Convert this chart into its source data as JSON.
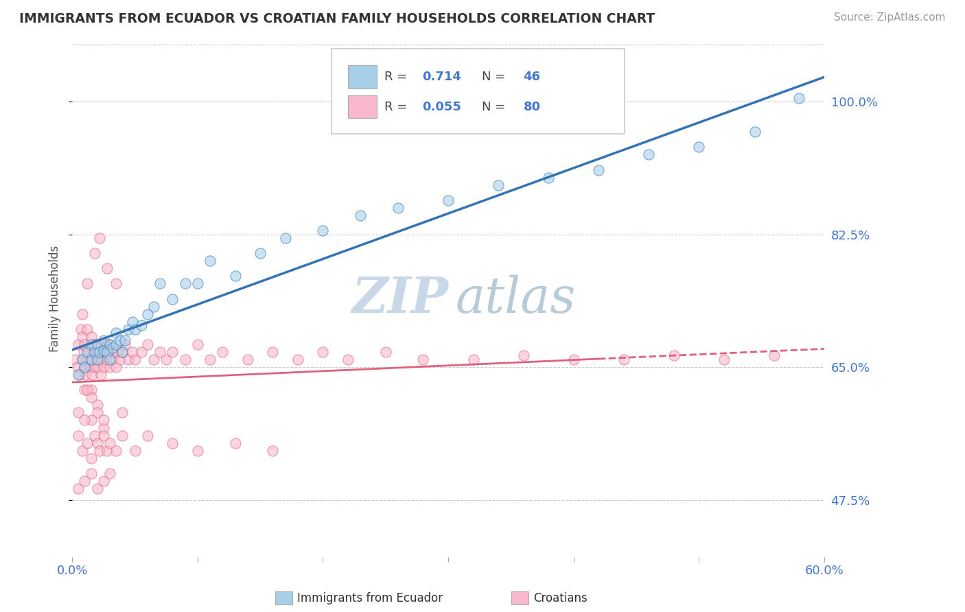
{
  "title": "IMMIGRANTS FROM ECUADOR VS CROATIAN FAMILY HOUSEHOLDS CORRELATION CHART",
  "source": "Source: ZipAtlas.com",
  "ylabel": "Family Households",
  "xlim": [
    0.0,
    0.6
  ],
  "ylim": [
    0.4,
    1.08
  ],
  "yticks": [
    0.475,
    0.65,
    0.825,
    1.0
  ],
  "ytick_labels": [
    "47.5%",
    "65.0%",
    "82.5%",
    "100.0%"
  ],
  "xticks": [
    0.0,
    0.1,
    0.2,
    0.3,
    0.4,
    0.5,
    0.6
  ],
  "xtick_labels": [
    "0.0%",
    "",
    "",
    "",
    "",
    "",
    "60.0%"
  ],
  "R_ecuador": 0.714,
  "N_ecuador": 46,
  "R_croatian": 0.055,
  "N_croatian": 80,
  "color_ecuador": "#a8cfe8",
  "color_croatian": "#f9b8cb",
  "trend_color_ecuador": "#3474b5",
  "trend_color_croatian": "#e06080",
  "background_color": "#ffffff",
  "grid_color": "#cccccc",
  "axis_color": "#4477cc",
  "title_color": "#333333",
  "watermark_color": "#c8d8e8",
  "ecuador_x": [
    0.005,
    0.008,
    0.01,
    0.012,
    0.015,
    0.015,
    0.018,
    0.02,
    0.02,
    0.022,
    0.025,
    0.025,
    0.028,
    0.03,
    0.03,
    0.032,
    0.035,
    0.035,
    0.038,
    0.04,
    0.042,
    0.045,
    0.048,
    0.05,
    0.055,
    0.06,
    0.065,
    0.07,
    0.08,
    0.09,
    0.1,
    0.11,
    0.13,
    0.15,
    0.17,
    0.2,
    0.23,
    0.26,
    0.3,
    0.34,
    0.38,
    0.42,
    0.46,
    0.5,
    0.545,
    0.58
  ],
  "ecuador_y": [
    0.64,
    0.66,
    0.65,
    0.67,
    0.66,
    0.68,
    0.67,
    0.66,
    0.68,
    0.67,
    0.672,
    0.685,
    0.67,
    0.66,
    0.68,
    0.675,
    0.68,
    0.695,
    0.685,
    0.67,
    0.685,
    0.7,
    0.71,
    0.7,
    0.705,
    0.72,
    0.73,
    0.76,
    0.74,
    0.76,
    0.76,
    0.79,
    0.77,
    0.8,
    0.82,
    0.83,
    0.85,
    0.86,
    0.87,
    0.89,
    0.9,
    0.91,
    0.93,
    0.94,
    0.96,
    1.005
  ],
  "croatian_x": [
    0.002,
    0.004,
    0.005,
    0.006,
    0.007,
    0.008,
    0.008,
    0.009,
    0.01,
    0.01,
    0.01,
    0.011,
    0.012,
    0.012,
    0.013,
    0.014,
    0.015,
    0.015,
    0.015,
    0.016,
    0.017,
    0.018,
    0.018,
    0.019,
    0.02,
    0.02,
    0.021,
    0.022,
    0.023,
    0.024,
    0.025,
    0.026,
    0.027,
    0.028,
    0.03,
    0.03,
    0.032,
    0.033,
    0.035,
    0.036,
    0.038,
    0.04,
    0.042,
    0.045,
    0.048,
    0.05,
    0.055,
    0.06,
    0.065,
    0.07,
    0.075,
    0.08,
    0.09,
    0.1,
    0.11,
    0.12,
    0.14,
    0.16,
    0.18,
    0.2,
    0.22,
    0.25,
    0.28,
    0.32,
    0.36,
    0.4,
    0.44,
    0.48,
    0.52,
    0.56,
    0.008,
    0.012,
    0.018,
    0.022,
    0.028,
    0.035,
    0.005,
    0.015,
    0.025,
    0.04
  ],
  "croatian_y": [
    0.66,
    0.65,
    0.68,
    0.64,
    0.7,
    0.66,
    0.69,
    0.67,
    0.62,
    0.65,
    0.68,
    0.64,
    0.66,
    0.7,
    0.67,
    0.65,
    0.62,
    0.66,
    0.69,
    0.64,
    0.67,
    0.65,
    0.68,
    0.66,
    0.65,
    0.68,
    0.66,
    0.67,
    0.64,
    0.66,
    0.65,
    0.67,
    0.66,
    0.68,
    0.65,
    0.68,
    0.66,
    0.67,
    0.65,
    0.67,
    0.66,
    0.67,
    0.68,
    0.66,
    0.67,
    0.66,
    0.67,
    0.68,
    0.66,
    0.67,
    0.66,
    0.67,
    0.66,
    0.68,
    0.66,
    0.67,
    0.66,
    0.67,
    0.66,
    0.67,
    0.66,
    0.67,
    0.66,
    0.66,
    0.665,
    0.66,
    0.66,
    0.665,
    0.66,
    0.665,
    0.72,
    0.76,
    0.8,
    0.82,
    0.78,
    0.76,
    0.59,
    0.58,
    0.57,
    0.59
  ],
  "croatian_x2": [
    0.005,
    0.008,
    0.01,
    0.012,
    0.015,
    0.018,
    0.02,
    0.022,
    0.025,
    0.028,
    0.03,
    0.035,
    0.04,
    0.05,
    0.06,
    0.08,
    0.1,
    0.13,
    0.16,
    0.005,
    0.01,
    0.015,
    0.02,
    0.025,
    0.03,
    0.02,
    0.015,
    0.012,
    0.02,
    0.025
  ],
  "croatian_y2": [
    0.56,
    0.54,
    0.58,
    0.55,
    0.53,
    0.56,
    0.55,
    0.54,
    0.56,
    0.54,
    0.55,
    0.54,
    0.56,
    0.54,
    0.56,
    0.55,
    0.54,
    0.55,
    0.54,
    0.49,
    0.5,
    0.51,
    0.49,
    0.5,
    0.51,
    0.6,
    0.61,
    0.62,
    0.59,
    0.58
  ]
}
